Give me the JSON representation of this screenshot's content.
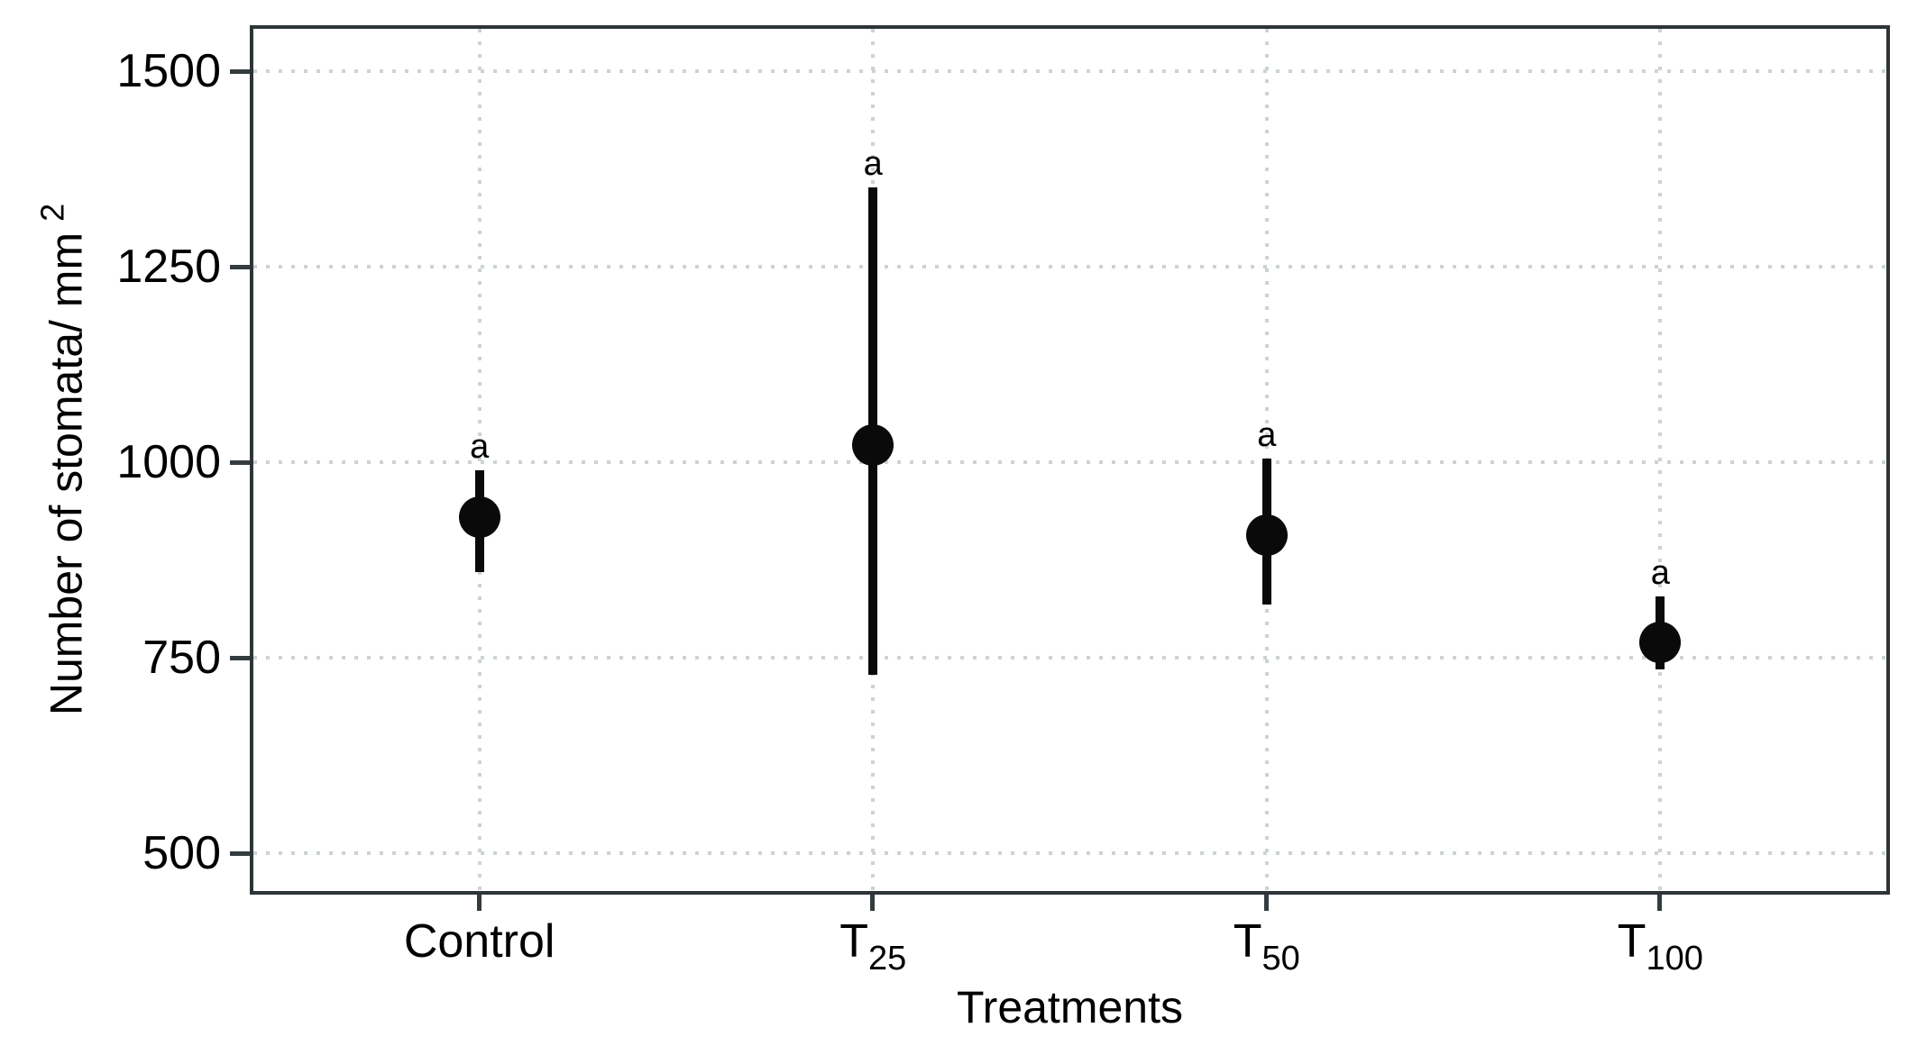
{
  "chart_data": {
    "type": "scatter",
    "subtype": "point-range (mean with error bars)",
    "title": "",
    "xlabel": "Treatments",
    "ylabel_base": "Number of stomata/ mm",
    "ylabel_superscript": "2",
    "categories": [
      "Control",
      "T25",
      "T50",
      "T100"
    ],
    "category_labels": [
      {
        "main": "Control",
        "sub": ""
      },
      {
        "main": "T",
        "sub": "25"
      },
      {
        "main": "T",
        "sub": "50"
      },
      {
        "main": "T",
        "sub": "100"
      }
    ],
    "series": [
      {
        "name": "Number of stomata per mm2",
        "means": [
          930,
          1022,
          907,
          770
        ],
        "lower": [
          860,
          728,
          818,
          735
        ],
        "upper": [
          990,
          1352,
          1005,
          828
        ],
        "sig_letters": [
          "a",
          "a",
          "a",
          "a"
        ]
      }
    ],
    "ylim": [
      447,
      1559
    ],
    "yticks": [
      500,
      750,
      1000,
      1250,
      1500
    ],
    "grid": {
      "horizontal": true,
      "vertical": true,
      "style": "dotted",
      "at": "major ticks only"
    },
    "legend": "none",
    "colors": {
      "point": "#0a0a0a",
      "error_bar": "#0a0a0a",
      "grid": "#ccd4cf",
      "panel_border": "#2d3538",
      "tick_mark": "#353c3f",
      "text": "#000000",
      "background": "#ffffff"
    }
  }
}
